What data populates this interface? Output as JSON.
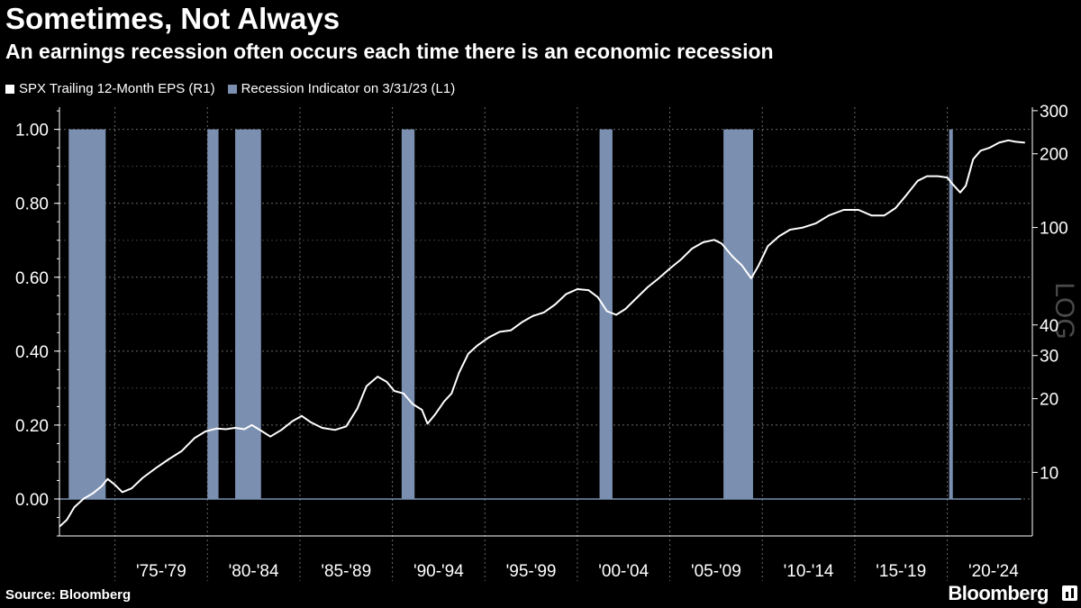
{
  "header": {
    "title": "Sometimes, Not Always",
    "subtitle": "An earnings recession often occurs each time there is an economic recession"
  },
  "legend": {
    "items": [
      {
        "label": "SPX Trailing 12-Month EPS (R1)",
        "color": "#ffffff"
      },
      {
        "label": "Recession Indicator on 3/31/23 (L1)",
        "color": "#7b8fb0"
      }
    ]
  },
  "footer": {
    "source": "Source: Bloomberg",
    "brand": "Bloomberg"
  },
  "chart_data": {
    "type": "line",
    "x_range": [
      1972.0,
      2024.6
    ],
    "x_tick_labels": [
      {
        "label": "'75-'79",
        "center": 1977.5
      },
      {
        "label": "'80-'84",
        "center": 1982.5
      },
      {
        "label": "'85-'89",
        "center": 1987.5
      },
      {
        "label": "'90-'94",
        "center": 1992.5
      },
      {
        "label": "'95-'99",
        "center": 1997.5
      },
      {
        "label": "'00-'04",
        "center": 2002.5
      },
      {
        "label": "'05-'09",
        "center": 2007.5
      },
      {
        "label": "'10-'14",
        "center": 2012.5
      },
      {
        "label": "'15-'19",
        "center": 2017.5
      },
      {
        "label": "'20-'24",
        "center": 2022.5
      }
    ],
    "x_gridlines": [
      1975,
      1980,
      1985,
      1990,
      1995,
      2000,
      2005,
      2010,
      2015,
      2020
    ],
    "left_axis": {
      "ylim": [
        -0.1,
        1.06
      ],
      "ticks": [
        "0.00",
        "0.20",
        "0.40",
        "0.60",
        "0.80",
        "1.00"
      ],
      "tick_values": [
        0,
        0.2,
        0.4,
        0.6,
        0.8,
        1.0
      ]
    },
    "right_axis": {
      "scale": "log",
      "ylim": [
        5.5,
        310
      ],
      "ticks": [
        "10",
        "20",
        "30",
        "40",
        "100",
        "200",
        "300"
      ],
      "tick_values": [
        10,
        20,
        30,
        40,
        100,
        200,
        300
      ],
      "watermark": "LOG"
    },
    "grid": true,
    "series": [
      {
        "name": "Recession Indicator on 3/31/23 (L1)",
        "type": "bar",
        "color": "#7b8fb0",
        "periods": [
          {
            "start": 1972.5,
            "end": 1974.5,
            "value": 1
          },
          {
            "start": 1980.0,
            "end": 1980.6,
            "value": 1
          },
          {
            "start": 1981.5,
            "end": 1982.9,
            "value": 1
          },
          {
            "start": 1990.5,
            "end": 1991.2,
            "value": 1
          },
          {
            "start": 2001.2,
            "end": 2001.9,
            "value": 1
          },
          {
            "start": 2007.9,
            "end": 2009.5,
            "value": 1
          },
          {
            "start": 2020.1,
            "end": 2020.3,
            "value": 1
          }
        ],
        "baseline": 0
      },
      {
        "name": "SPX Trailing 12-Month EPS (R1)",
        "type": "line",
        "color": "#ffffff",
        "x": [
          1972.0,
          1972.4,
          1972.8,
          1973.3,
          1973.8,
          1974.3,
          1974.6,
          1975.0,
          1975.4,
          1975.9,
          1976.5,
          1977.2,
          1977.9,
          1978.6,
          1979.3,
          1979.9,
          1980.5,
          1981.0,
          1981.5,
          1982.0,
          1982.4,
          1982.9,
          1983.4,
          1984.0,
          1984.6,
          1985.1,
          1985.6,
          1986.2,
          1986.9,
          1987.5,
          1988.1,
          1988.6,
          1989.2,
          1989.7,
          1990.1,
          1990.6,
          1991.1,
          1991.6,
          1991.9,
          1992.3,
          1992.8,
          1993.2,
          1993.6,
          1994.1,
          1994.6,
          1995.2,
          1995.8,
          1996.4,
          1997.0,
          1997.6,
          1998.2,
          1998.8,
          1999.4,
          2000.0,
          2000.6,
          2001.1,
          2001.6,
          2002.1,
          2002.6,
          2003.2,
          2003.8,
          2004.4,
          2005.0,
          2005.6,
          2006.2,
          2006.8,
          2007.4,
          2007.8,
          2008.4,
          2008.9,
          2009.4,
          2009.8,
          2010.3,
          2010.9,
          2011.5,
          2012.2,
          2012.9,
          2013.6,
          2014.4,
          2015.2,
          2015.9,
          2016.6,
          2017.2,
          2017.8,
          2018.4,
          2018.9,
          2019.5,
          2020.0,
          2020.3,
          2020.7,
          2021.0,
          2021.4,
          2021.8,
          2022.3,
          2022.8,
          2023.3,
          2023.7,
          2024.2
        ],
        "y": [
          6.0,
          6.4,
          7.2,
          7.8,
          8.2,
          8.8,
          9.4,
          8.9,
          8.3,
          8.6,
          9.5,
          10.4,
          11.3,
          12.2,
          13.8,
          14.7,
          15.1,
          15.0,
          15.2,
          15.0,
          15.6,
          14.8,
          14.0,
          14.9,
          16.2,
          17.0,
          16.0,
          15.2,
          14.9,
          15.4,
          18.2,
          22.5,
          24.6,
          23.4,
          21.5,
          21.0,
          19.0,
          18.0,
          15.8,
          17.2,
          19.5,
          21.0,
          25.5,
          30.5,
          33.0,
          35.5,
          37.5,
          38.0,
          41.0,
          43.5,
          45.0,
          48.5,
          53.5,
          56.0,
          55.5,
          52.0,
          45.5,
          44.0,
          46.5,
          51.5,
          57.0,
          62.0,
          68.0,
          74.0,
          82.0,
          87.0,
          89.0,
          86.0,
          76.0,
          70.0,
          62.0,
          70.0,
          84.0,
          92.0,
          98.0,
          100.0,
          104.0,
          112.0,
          118.0,
          118.0,
          112.0,
          112.0,
          120.0,
          136.0,
          155.0,
          162.0,
          162.0,
          160.0,
          150.0,
          139.0,
          148.0,
          190.0,
          206.0,
          212.0,
          222.0,
          227.0,
          224.0,
          222.0
        ]
      }
    ]
  }
}
